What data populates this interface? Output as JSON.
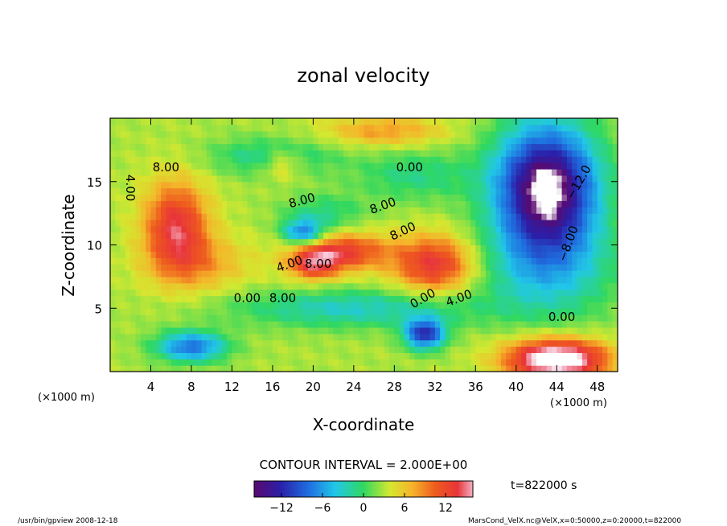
{
  "chart_data": {
    "type": "heatmap",
    "title": "zonal velocity",
    "xlabel": "X-coordinate",
    "ylabel": "Z-coordinate",
    "x_unit": "(×1000 m)",
    "z_unit": "(×1000 m)",
    "xlim": [
      0,
      50
    ],
    "ylim": [
      0,
      20
    ],
    "x_ticks": [
      4,
      8,
      12,
      16,
      20,
      24,
      28,
      32,
      36,
      40,
      44,
      48
    ],
    "y_ticks": [
      5,
      10,
      15
    ],
    "colorbar": {
      "range": [
        -16,
        16
      ],
      "ticks": [
        -12,
        -6,
        0,
        6,
        12
      ],
      "tick_labels": [
        "−12",
        "−6",
        "0",
        "6",
        "12"
      ]
    },
    "contour_labels": [
      "8.00",
      "4.00",
      "0.00",
      "8.00",
      "8.00",
      "0.00",
      "8.00",
      "8.00",
      "4.00",
      "8.00",
      "0.00",
      "4.00",
      "−8.00",
      "−12.0",
      "0.00"
    ],
    "note_contour": "CONTOUR INTERVAL = 2.000E+00",
    "time_label": "t=822000 s",
    "footer_left": "/usr/bin/gpview  2008-12-18",
    "footer_right": "MarsCond_VelX.nc@VelX,x=0:50000,z=0:20000,t=822000"
  }
}
